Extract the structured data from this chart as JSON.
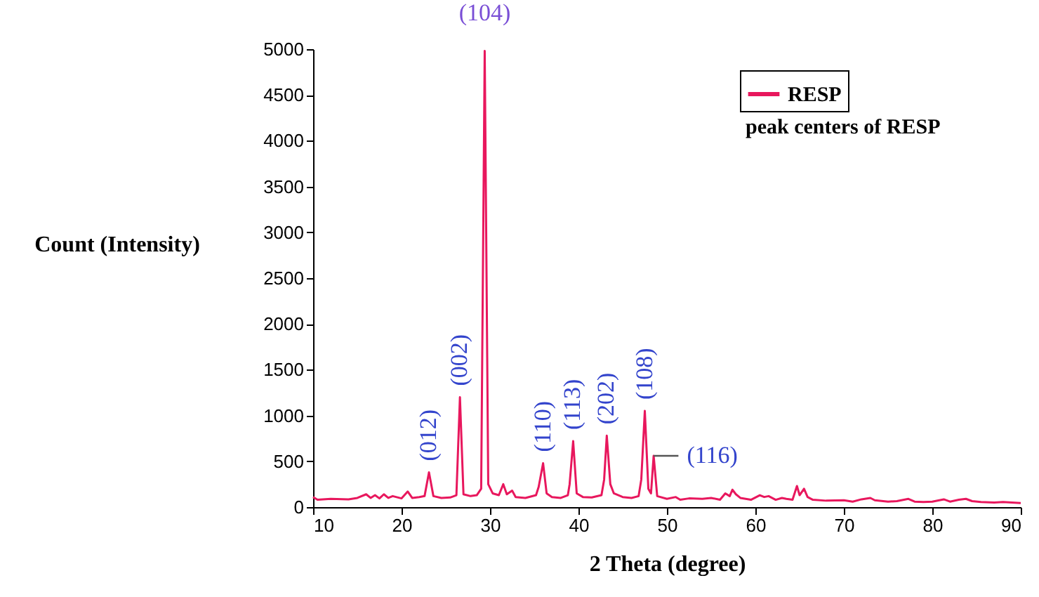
{
  "chart_data": {
    "type": "line",
    "xlabel": "2 Theta (degree)",
    "ylabel": "Count (Intensity)",
    "xlim": [
      10,
      90
    ],
    "xticks": [
      10,
      20,
      30,
      40,
      50,
      60,
      70,
      80,
      90
    ],
    "ylim": [
      0,
      5000
    ],
    "yticks": [
      0,
      500,
      1000,
      1500,
      2000,
      2500,
      3000,
      3500,
      4000,
      4500,
      5000
    ],
    "grid": false,
    "legend": "top right",
    "x": [
      10,
      10.5,
      12,
      14,
      15,
      16,
      16.5,
      17,
      17.5,
      18,
      18.5,
      19,
      20,
      20.7,
      21.2,
      22,
      22.6,
      23.1,
      23.6,
      24.5,
      25.5,
      26.2,
      26.6,
      27.0,
      27.8,
      28.5,
      29.0,
      29.4,
      29.8,
      30.3,
      31.0,
      31.5,
      31.9,
      32.5,
      32.9,
      34,
      35.2,
      35.5,
      36.0,
      36.4,
      37,
      38,
      38.8,
      39.0,
      39.4,
      39.8,
      40.5,
      41.5,
      42.6,
      42.9,
      43.2,
      43.6,
      44.0,
      45,
      46,
      46.8,
      47.1,
      47.5,
      47.9,
      48.2,
      48.5,
      48.9,
      50,
      51,
      51.5,
      52.5,
      54,
      55,
      56,
      56.6,
      57.1,
      57.4,
      57.8,
      58.3,
      59.5,
      60.5,
      61,
      61.5,
      62.3,
      63,
      63.5,
      64.2,
      64.7,
      65.0,
      65.5,
      65.9,
      66.5,
      68,
      70,
      71,
      72,
      73,
      73.5,
      75,
      76,
      77.3,
      78,
      79,
      80,
      81.3,
      82,
      83,
      83.8,
      84.5,
      85.5,
      87,
      88,
      90
    ],
    "series": [
      {
        "name": "RESP",
        "color": "#e8175d",
        "values": [
          110,
          80,
          90,
          85,
          100,
          140,
          100,
          130,
          95,
          140,
          100,
          120,
          95,
          170,
          100,
          110,
          120,
          380,
          120,
          100,
          105,
          130,
          1200,
          140,
          120,
          130,
          200,
          4980,
          250,
          150,
          130,
          250,
          140,
          180,
          110,
          100,
          130,
          220,
          480,
          150,
          110,
          100,
          130,
          250,
          720,
          150,
          110,
          105,
          130,
          300,
          780,
          250,
          150,
          110,
          100,
          120,
          300,
          1050,
          200,
          150,
          560,
          120,
          90,
          110,
          80,
          95,
          90,
          100,
          80,
          150,
          120,
          190,
          140,
          100,
          80,
          130,
          110,
          120,
          80,
          100,
          90,
          80,
          230,
          130,
          200,
          110,
          80,
          70,
          75,
          60,
          85,
          100,
          75,
          60,
          65,
          90,
          60,
          55,
          60,
          85,
          60,
          80,
          90,
          65,
          55,
          50,
          55,
          45
        ]
      }
    ],
    "annotations": [
      {
        "text": "(012)",
        "x": 23.1,
        "y": 380
      },
      {
        "text": "(002)",
        "x": 26.6,
        "y": 1200
      },
      {
        "text": "(104)",
        "x": 29.4,
        "y": 4980
      },
      {
        "text": "(110)",
        "x": 36.0,
        "y": 480
      },
      {
        "text": "(113)",
        "x": 39.4,
        "y": 720
      },
      {
        "text": "(202)",
        "x": 43.2,
        "y": 780
      },
      {
        "text": "(108)",
        "x": 47.5,
        "y": 1050
      },
      {
        "text": "(116)",
        "x": 48.5,
        "y": 560
      },
      "peak centers of RESP"
    ]
  }
}
